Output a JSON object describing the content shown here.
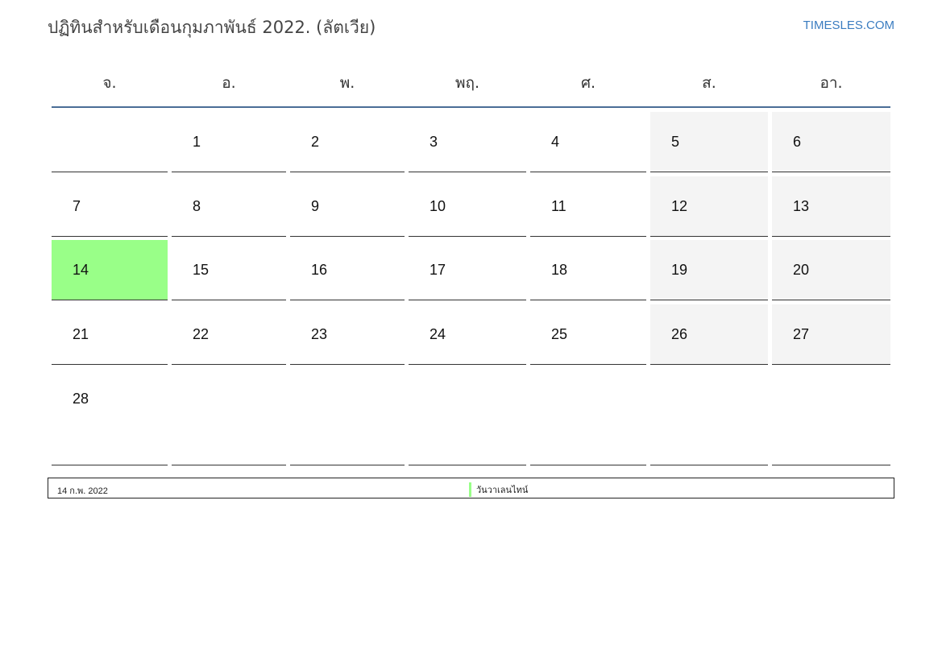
{
  "title": "ปฏิทินสำหรับเดือนกุมภาพันธ์ 2022. (ลัตเวีย)",
  "brand": "TIMESLES.COM",
  "weekdays": [
    "จ.",
    "อ.",
    "พ.",
    "พฤ.",
    "ศ.",
    "ส.",
    "อา."
  ],
  "weeks": [
    [
      "",
      "1",
      "2",
      "3",
      "4",
      "5",
      "6"
    ],
    [
      "7",
      "8",
      "9",
      "10",
      "11",
      "12",
      "13"
    ],
    [
      "14",
      "15",
      "16",
      "17",
      "18",
      "19",
      "20"
    ],
    [
      "21",
      "22",
      "23",
      "24",
      "25",
      "26",
      "27"
    ],
    [
      "28",
      "",
      "",
      "",
      "",
      "",
      ""
    ]
  ],
  "highlight_day": "14",
  "colors": {
    "highlight": "#99ff88",
    "weekend": "#f4f4f4",
    "header_line": "#4a6d96"
  },
  "legend": {
    "date": "14 ก.พ. 2022",
    "holiday": "วันวาเลนไทน์"
  }
}
